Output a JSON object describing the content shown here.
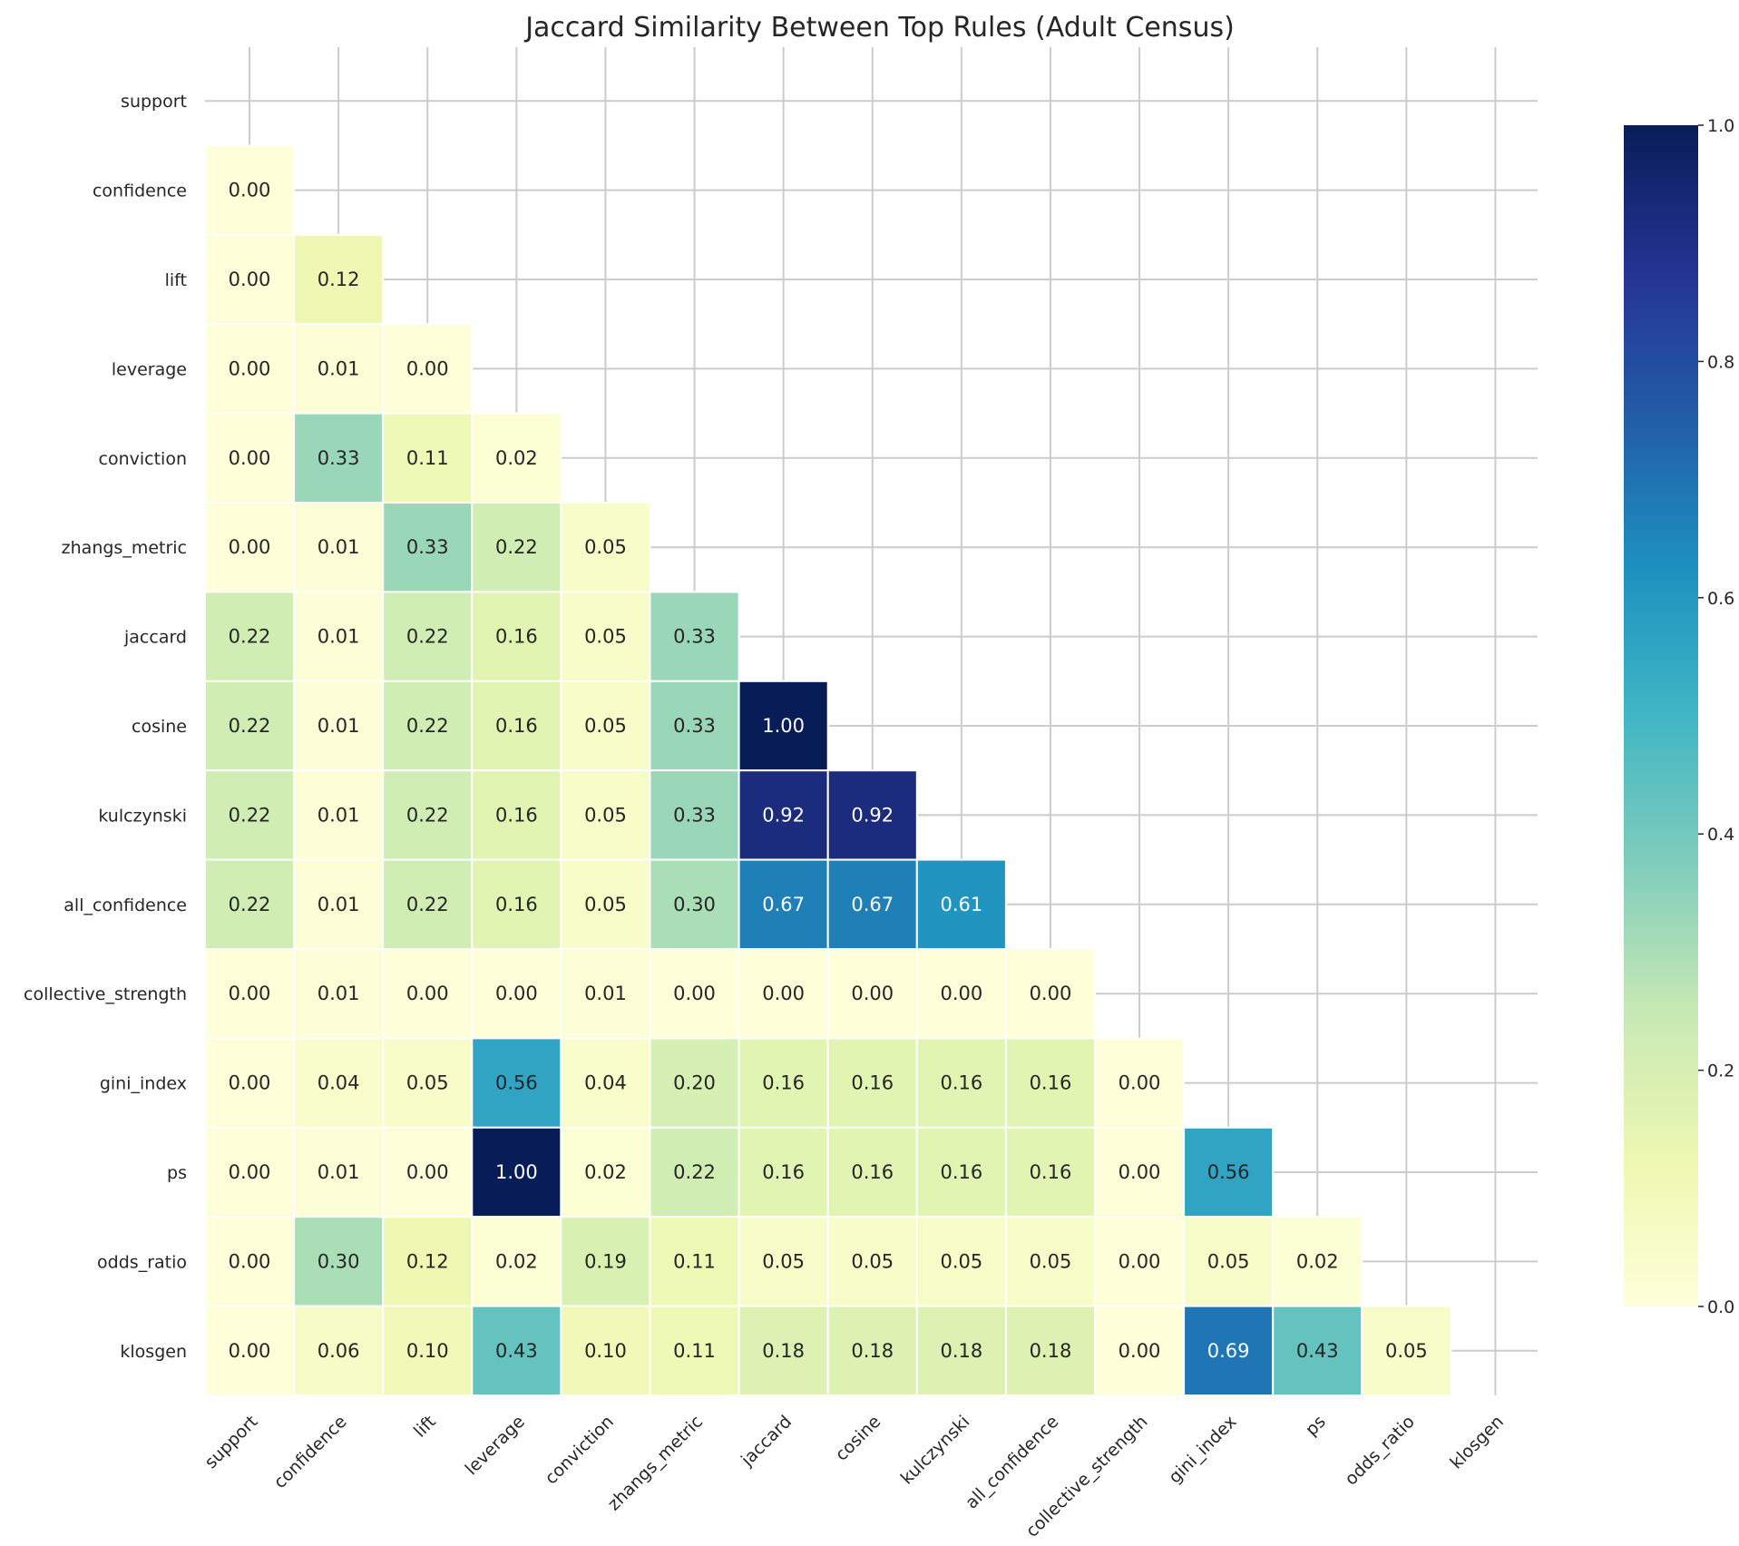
{
  "chart_data": {
    "type": "heatmap",
    "title": "Jaccard Similarity Between Top Rules (Adult Census)",
    "xlabel": "",
    "ylabel": "",
    "labels": [
      "support",
      "confidence",
      "lift",
      "leverage",
      "conviction",
      "zhangs_metric",
      "jaccard",
      "cosine",
      "kulczynski",
      "all_confidence",
      "collective_strength",
      "gini_index",
      "ps",
      "odds_ratio",
      "klosgen"
    ],
    "mask": "upper-triangle-and-diagonal",
    "values": [
      [],
      [
        0.0
      ],
      [
        0.0,
        0.12
      ],
      [
        0.0,
        0.01,
        0.0
      ],
      [
        0.0,
        0.33,
        0.11,
        0.02
      ],
      [
        0.0,
        0.01,
        0.33,
        0.22,
        0.05
      ],
      [
        0.22,
        0.01,
        0.22,
        0.16,
        0.05,
        0.33
      ],
      [
        0.22,
        0.01,
        0.22,
        0.16,
        0.05,
        0.33,
        1.0
      ],
      [
        0.22,
        0.01,
        0.22,
        0.16,
        0.05,
        0.33,
        0.92,
        0.92
      ],
      [
        0.22,
        0.01,
        0.22,
        0.16,
        0.05,
        0.3,
        0.67,
        0.67,
        0.61
      ],
      [
        0.0,
        0.01,
        0.0,
        0.0,
        0.01,
        0.0,
        0.0,
        0.0,
        0.0,
        0.0
      ],
      [
        0.0,
        0.04,
        0.05,
        0.56,
        0.04,
        0.2,
        0.16,
        0.16,
        0.16,
        0.16,
        0.0
      ],
      [
        0.0,
        0.01,
        0.0,
        1.0,
        0.02,
        0.22,
        0.16,
        0.16,
        0.16,
        0.16,
        0.0,
        0.56
      ],
      [
        0.0,
        0.3,
        0.12,
        0.02,
        0.19,
        0.11,
        0.05,
        0.05,
        0.05,
        0.05,
        0.0,
        0.05,
        0.02
      ],
      [
        0.0,
        0.06,
        0.1,
        0.43,
        0.1,
        0.11,
        0.18,
        0.18,
        0.18,
        0.18,
        0.0,
        0.69,
        0.43,
        0.05
      ]
    ],
    "value_format": "0.00",
    "colorscale": "YlGnBu",
    "vmin": 0.0,
    "vmax": 1.0,
    "colorbar_ticks": [
      "0.0",
      "0.2",
      "0.4",
      "0.6",
      "0.8",
      "1.0"
    ],
    "grid": true,
    "colors": {
      "grid_line": "#cccccc",
      "cell_border": "#ffffff",
      "text_dark": "#262626",
      "text_light": "#ffffff"
    }
  }
}
